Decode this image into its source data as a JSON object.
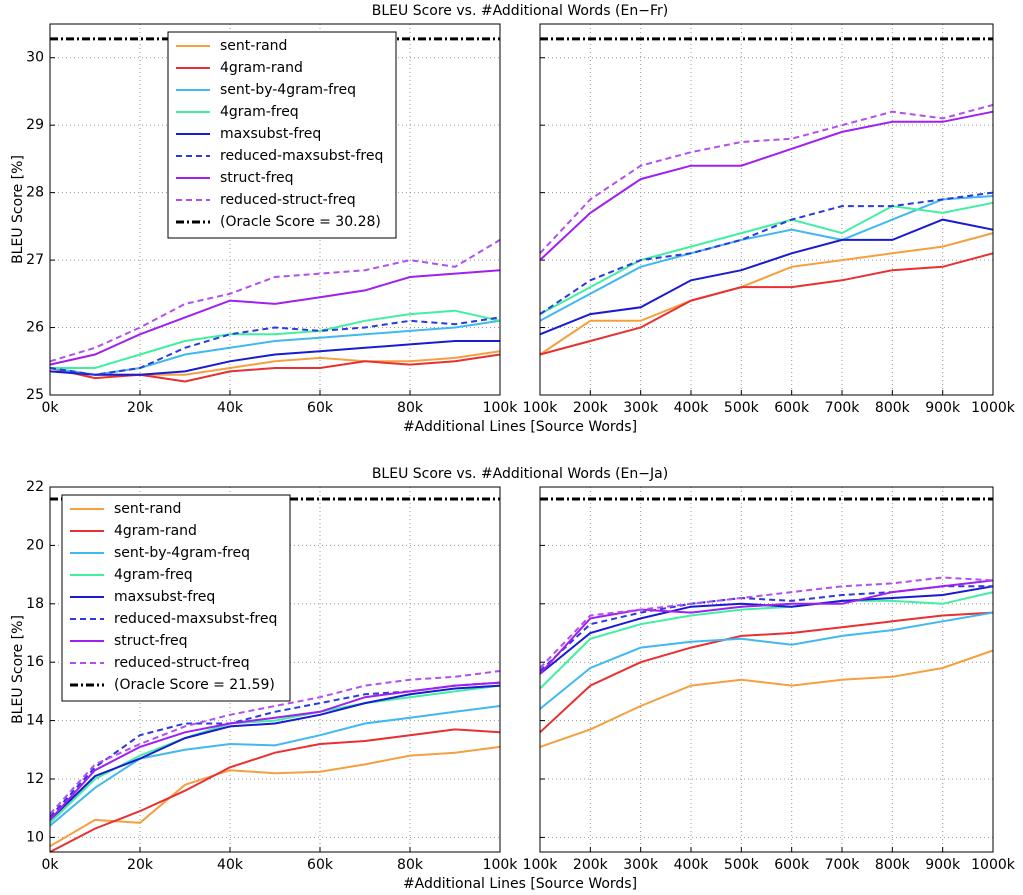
{
  "chart_data": [
    {
      "type": "line",
      "title": "BLEU Score vs. #Additional Words (En−Fr)",
      "xlabel": "#Additional Lines [Source Words]",
      "ylabel": "BLEU Score [%]",
      "ylim": [
        25,
        30.5
      ],
      "yticks": [
        25,
        26,
        27,
        28,
        29,
        30
      ],
      "grid": true,
      "legend": "upper center",
      "oracle": {
        "name": "(Oracle Score = 30.28)",
        "value": 30.28
      },
      "series": [
        {
          "name": "sent-rand",
          "color": "#f5a040",
          "dash": false
        },
        {
          "name": "4gram-rand",
          "color": "#e83030",
          "dash": false
        },
        {
          "name": "sent-by-4gram-freq",
          "color": "#40b8f0",
          "dash": false
        },
        {
          "name": "4gram-freq",
          "color": "#40f0a0",
          "dash": false
        },
        {
          "name": "maxsubst-freq",
          "color": "#1a1ad0",
          "dash": false
        },
        {
          "name": "reduced-maxsubst-freq",
          "color": "#2a3ae0",
          "dash": true
        },
        {
          "name": "struct-freq",
          "color": "#a020f0",
          "dash": false
        },
        {
          "name": "reduced-struct-freq",
          "color": "#b050f0",
          "dash": true
        }
      ],
      "panels": [
        {
          "xlim": [
            0,
            100000
          ],
          "xticks": [
            {
              "value": 0,
              "label": "0k"
            },
            {
              "value": 20000,
              "label": "20k"
            },
            {
              "value": 40000,
              "label": "40k"
            },
            {
              "value": 60000,
              "label": "60k"
            },
            {
              "value": 80000,
              "label": "80k"
            },
            {
              "value": 100000,
              "label": "100k"
            }
          ],
          "x": [
            0,
            10000,
            20000,
            30000,
            40000,
            50000,
            60000,
            70000,
            80000,
            90000,
            100000
          ],
          "series": [
            {
              "values": [
                25.4,
                25.3,
                25.3,
                25.3,
                25.4,
                25.5,
                25.55,
                25.5,
                25.5,
                25.55,
                25.65
              ]
            },
            {
              "values": [
                25.4,
                25.25,
                25.3,
                25.2,
                25.35,
                25.4,
                25.4,
                25.5,
                25.45,
                25.5,
                25.6
              ]
            },
            {
              "values": [
                25.4,
                25.3,
                25.4,
                25.6,
                25.7,
                25.8,
                25.85,
                25.9,
                25.95,
                26.0,
                26.1
              ]
            },
            {
              "values": [
                25.4,
                25.4,
                25.6,
                25.8,
                25.9,
                25.9,
                25.95,
                26.1,
                26.2,
                26.25,
                26.1
              ]
            },
            {
              "values": [
                25.35,
                25.3,
                25.3,
                25.35,
                25.5,
                25.6,
                25.65,
                25.7,
                25.75,
                25.8,
                25.8
              ]
            },
            {
              "values": [
                25.4,
                25.3,
                25.4,
                25.7,
                25.9,
                26.0,
                25.95,
                26.0,
                26.1,
                26.05,
                26.15
              ]
            },
            {
              "values": [
                25.45,
                25.6,
                25.9,
                26.15,
                26.4,
                26.35,
                26.45,
                26.55,
                26.75,
                26.8,
                26.85
              ]
            },
            {
              "values": [
                25.5,
                25.7,
                26.0,
                26.35,
                26.5,
                26.75,
                26.8,
                26.85,
                27.0,
                26.9,
                27.3
              ]
            }
          ]
        },
        {
          "xlim": [
            100000,
            1000000
          ],
          "xticks": [
            {
              "value": 100000,
              "label": "100k"
            },
            {
              "value": 200000,
              "label": "200k"
            },
            {
              "value": 300000,
              "label": "300k"
            },
            {
              "value": 400000,
              "label": "400k"
            },
            {
              "value": 500000,
              "label": "500k"
            },
            {
              "value": 600000,
              "label": "600k"
            },
            {
              "value": 700000,
              "label": "700k"
            },
            {
              "value": 800000,
              "label": "800k"
            },
            {
              "value": 900000,
              "label": "900k"
            },
            {
              "value": 1000000,
              "label": "1000k"
            }
          ],
          "x": [
            100000,
            200000,
            300000,
            400000,
            500000,
            600000,
            700000,
            800000,
            900000,
            1000000
          ],
          "series": [
            {
              "values": [
                25.6,
                26.1,
                26.1,
                26.4,
                26.6,
                26.9,
                27.0,
                27.1,
                27.2,
                27.4
              ]
            },
            {
              "values": [
                25.6,
                25.8,
                26.0,
                26.4,
                26.6,
                26.6,
                26.7,
                26.85,
                26.9,
                27.1
              ]
            },
            {
              "values": [
                26.1,
                26.5,
                26.9,
                27.1,
                27.3,
                27.45,
                27.3,
                27.6,
                27.9,
                27.95
              ]
            },
            {
              "values": [
                26.2,
                26.6,
                27.0,
                27.2,
                27.4,
                27.6,
                27.4,
                27.8,
                27.7,
                27.85
              ]
            },
            {
              "values": [
                25.9,
                26.2,
                26.3,
                26.7,
                26.85,
                27.1,
                27.3,
                27.3,
                27.6,
                27.45
              ]
            },
            {
              "values": [
                26.2,
                26.7,
                27.0,
                27.1,
                27.3,
                27.6,
                27.8,
                27.8,
                27.9,
                28.0
              ]
            },
            {
              "values": [
                27.0,
                27.7,
                28.2,
                28.4,
                28.4,
                28.65,
                28.9,
                29.05,
                29.05,
                29.2
              ]
            },
            {
              "values": [
                27.1,
                27.9,
                28.4,
                28.6,
                28.75,
                28.8,
                29.0,
                29.2,
                29.1,
                29.3
              ]
            }
          ]
        }
      ]
    },
    {
      "type": "line",
      "title": "BLEU Score vs. #Additional Words (En−Ja)",
      "xlabel": "#Additional Lines [Source Words]",
      "ylabel": "BLEU Score [%]",
      "ylim": [
        9.5,
        22
      ],
      "yticks": [
        10,
        12,
        14,
        16,
        18,
        20,
        22
      ],
      "grid": true,
      "legend": "upper left",
      "oracle": {
        "name": "(Oracle Score = 21.59)",
        "value": 21.59
      },
      "series": [
        {
          "name": "sent-rand",
          "color": "#f5a040",
          "dash": false
        },
        {
          "name": "4gram-rand",
          "color": "#e83030",
          "dash": false
        },
        {
          "name": "sent-by-4gram-freq",
          "color": "#40b8f0",
          "dash": false
        },
        {
          "name": "4gram-freq",
          "color": "#40f0a0",
          "dash": false
        },
        {
          "name": "maxsubst-freq",
          "color": "#1a1ad0",
          "dash": false
        },
        {
          "name": "reduced-maxsubst-freq",
          "color": "#2a3ae0",
          "dash": true
        },
        {
          "name": "struct-freq",
          "color": "#a020f0",
          "dash": false
        },
        {
          "name": "reduced-struct-freq",
          "color": "#b050f0",
          "dash": true
        }
      ],
      "panels": [
        {
          "xlim": [
            0,
            100000
          ],
          "xticks": [
            {
              "value": 0,
              "label": "0k"
            },
            {
              "value": 20000,
              "label": "20k"
            },
            {
              "value": 40000,
              "label": "40k"
            },
            {
              "value": 60000,
              "label": "60k"
            },
            {
              "value": 80000,
              "label": "80k"
            },
            {
              "value": 100000,
              "label": "100k"
            }
          ],
          "x": [
            0,
            10000,
            20000,
            30000,
            40000,
            50000,
            60000,
            70000,
            80000,
            90000,
            100000
          ],
          "series": [
            {
              "values": [
                9.7,
                10.6,
                10.5,
                11.8,
                12.3,
                12.2,
                12.25,
                12.5,
                12.8,
                12.9,
                13.1
              ]
            },
            {
              "values": [
                9.5,
                10.3,
                10.9,
                11.6,
                12.4,
                12.9,
                13.2,
                13.3,
                13.5,
                13.7,
                13.6
              ]
            },
            {
              "values": [
                10.4,
                11.7,
                12.7,
                13.0,
                13.2,
                13.15,
                13.5,
                13.9,
                14.1,
                14.3,
                14.5
              ]
            },
            {
              "values": [
                10.5,
                12.0,
                12.8,
                13.4,
                13.9,
                14.0,
                14.3,
                14.6,
                14.8,
                15.0,
                15.2
              ]
            },
            {
              "values": [
                10.6,
                12.1,
                12.7,
                13.4,
                13.8,
                13.9,
                14.2,
                14.6,
                14.9,
                15.1,
                15.2
              ]
            },
            {
              "values": [
                10.7,
                12.4,
                13.5,
                13.9,
                13.9,
                14.3,
                14.6,
                14.9,
                15.0,
                15.2,
                15.3
              ]
            },
            {
              "values": [
                10.6,
                12.3,
                13.1,
                13.6,
                13.9,
                14.1,
                14.3,
                14.8,
                15.0,
                15.2,
                15.3
              ]
            },
            {
              "values": [
                10.8,
                12.5,
                13.2,
                13.8,
                14.2,
                14.5,
                14.8,
                15.2,
                15.4,
                15.5,
                15.7
              ]
            }
          ]
        },
        {
          "xlim": [
            100000,
            1000000
          ],
          "xticks": [
            {
              "value": 100000,
              "label": "100k"
            },
            {
              "value": 200000,
              "label": "200k"
            },
            {
              "value": 300000,
              "label": "300k"
            },
            {
              "value": 400000,
              "label": "400k"
            },
            {
              "value": 500000,
              "label": "500k"
            },
            {
              "value": 600000,
              "label": "600k"
            },
            {
              "value": 700000,
              "label": "700k"
            },
            {
              "value": 800000,
              "label": "800k"
            },
            {
              "value": 900000,
              "label": "900k"
            },
            {
              "value": 1000000,
              "label": "1000k"
            }
          ],
          "x": [
            100000,
            200000,
            300000,
            400000,
            500000,
            600000,
            700000,
            800000,
            900000,
            1000000
          ],
          "series": [
            {
              "values": [
                13.1,
                13.7,
                14.5,
                15.2,
                15.4,
                15.2,
                15.4,
                15.5,
                15.8,
                16.4
              ]
            },
            {
              "values": [
                13.6,
                15.2,
                16.0,
                16.5,
                16.9,
                17.0,
                17.2,
                17.4,
                17.6,
                17.7
              ]
            },
            {
              "values": [
                14.4,
                15.8,
                16.5,
                16.7,
                16.8,
                16.6,
                16.9,
                17.1,
                17.4,
                17.7
              ]
            },
            {
              "values": [
                15.1,
                16.8,
                17.3,
                17.6,
                17.8,
                17.9,
                18.1,
                18.1,
                18.0,
                18.4
              ]
            },
            {
              "values": [
                15.6,
                17.0,
                17.5,
                17.9,
                18.0,
                17.9,
                18.1,
                18.2,
                18.3,
                18.6
              ]
            },
            {
              "values": [
                15.7,
                17.3,
                17.7,
                18.0,
                18.2,
                18.1,
                18.3,
                18.4,
                18.6,
                18.6
              ]
            },
            {
              "values": [
                15.6,
                17.5,
                17.8,
                17.7,
                17.9,
                18.0,
                18.0,
                18.4,
                18.6,
                18.8
              ]
            },
            {
              "values": [
                15.8,
                17.6,
                17.8,
                18.0,
                18.2,
                18.4,
                18.6,
                18.7,
                18.9,
                18.8
              ]
            }
          ]
        }
      ]
    }
  ]
}
